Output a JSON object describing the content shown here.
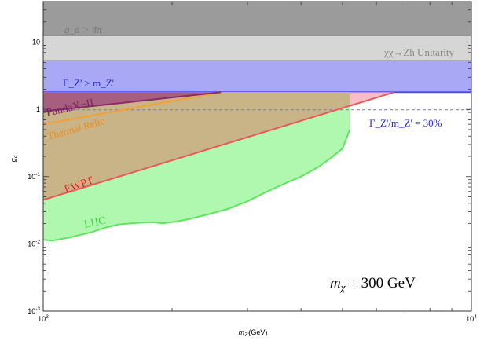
{
  "chart_data": {
    "type": "area",
    "title": "",
    "xlabel": "m_Z'(GeV)",
    "ylabel": "g_d",
    "xscale": "log",
    "yscale": "log",
    "xlim": [
      1000,
      10000
    ],
    "ylim": [
      0.001,
      40
    ],
    "x_ticks": [
      {
        "value": 1000,
        "base": "10",
        "exp": "3"
      },
      {
        "value": 10000,
        "base": "10",
        "exp": "4"
      }
    ],
    "y_ticks": [
      {
        "value": 0.001,
        "base": "10",
        "exp": "-3"
      },
      {
        "value": 0.01,
        "base": "10",
        "exp": "-2"
      },
      {
        "value": 0.1,
        "base": "10",
        "exp": "-1"
      },
      {
        "value": 1,
        "base": "1",
        "exp": ""
      },
      {
        "value": 10,
        "base": "10",
        "exp": ""
      }
    ],
    "colors": {
      "perturbativity": "#9b9b9b",
      "unitarity": "#d6d6d6",
      "width": "#a8a8f5",
      "width_line": "#4a4af0",
      "width30_line": "#7777ee",
      "lhc_fill": "#b0f7b0",
      "lhc_line": "#5ee65e",
      "ewpt_fill": "#f7b2bd",
      "ewpt_line": "#e85a5a",
      "relic_fill": "#c6b384",
      "relic_line": "#f5a033",
      "pandax_fill": "#9e4a7d",
      "pandax_line": "#8a2a6a"
    },
    "regions": [
      {
        "name": "perturbativity",
        "label": "g_d > 4π",
        "y_min": 12.57,
        "y_max": 40
      },
      {
        "name": "unitarity",
        "label": "χχ→Zh Unitarity",
        "y_min": 5.3,
        "y_max": 12.57
      },
      {
        "name": "width",
        "label": "Γ_Z' > m_Z'",
        "y_min": 1.8,
        "y_max": 5.3
      },
      {
        "name": "width30",
        "label": "Γ_Z'/m_Z' = 30%",
        "y": 0.985
      }
    ],
    "curves": [
      {
        "name": "LHC",
        "label": "LHC",
        "x": [
          1000,
          1050,
          1150,
          1300,
          1400,
          1500,
          1650,
          1800,
          1900,
          2050,
          2200,
          2400,
          2700,
          3000,
          3300,
          3600,
          4000,
          4400,
          4700,
          5000,
          5200
        ],
        "y": [
          0.0115,
          0.0112,
          0.0124,
          0.015,
          0.0175,
          0.0195,
          0.0205,
          0.021,
          0.0202,
          0.0215,
          0.0235,
          0.027,
          0.033,
          0.043,
          0.058,
          0.075,
          0.1,
          0.14,
          0.19,
          0.26,
          0.5
        ]
      },
      {
        "name": "EWPT",
        "label": "EWPT",
        "x": [
          1000,
          6600
        ],
        "y": [
          0.045,
          1.8
        ]
      },
      {
        "name": "Thermal Relic",
        "label": "Thermal Relic",
        "x": [
          1000,
          2600
        ],
        "y": [
          0.6,
          1.8
        ]
      },
      {
        "name": "PandaX-II",
        "label": "PandaX−II",
        "x": [
          1000,
          2600
        ],
        "y": [
          0.93,
          1.8
        ]
      }
    ],
    "annotation": {
      "label": "m_χ = 300 GeV",
      "prefix": "m",
      "sub": "χ",
      "rest": " = 300 GeV"
    }
  },
  "labels": {
    "xlabel_base": "m",
    "xlabel_sub": "Z'",
    "xlabel_rest": "(GeV)",
    "ylabel_base": "g",
    "ylabel_sub": "d",
    "perturb_text": "g_d > 4π",
    "unitarity_text": "χχ→Zh Unitarity",
    "width_text": "Γ_Z' > m_Z'",
    "width30_text": "Γ_Z'/m_Z' = 30%",
    "pandax_text": "PandaX−II",
    "relic_text": "Thermal Relic",
    "ewpt_text": "EWPT",
    "lhc_text": "LHC"
  }
}
